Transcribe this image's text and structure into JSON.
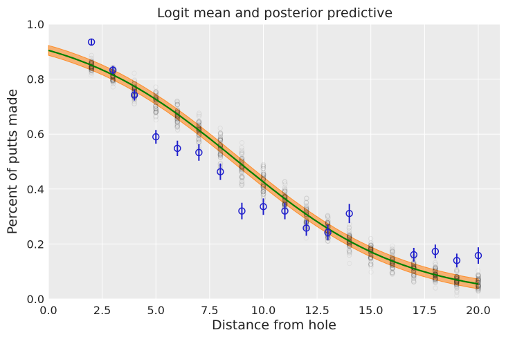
{
  "chart_data": {
    "type": "scatter",
    "title": "Logit mean and posterior predictive",
    "xlabel": "Distance from hole",
    "ylabel": "Percent of putts made",
    "xlim": [
      0,
      21
    ],
    "ylim": [
      0,
      1
    ],
    "xticks": [
      "0.0",
      "2.5",
      "5.0",
      "7.5",
      "10.0",
      "12.5",
      "15.0",
      "17.5",
      "20.0"
    ],
    "xtick_values": [
      0,
      2.5,
      5,
      7.5,
      10,
      12.5,
      15,
      17.5,
      20
    ],
    "yticks": [
      "0.0",
      "0.2",
      "0.4",
      "0.6",
      "0.8",
      "1.0"
    ],
    "ytick_values": [
      0,
      0.2,
      0.4,
      0.6,
      0.8,
      1.0
    ],
    "grid": true,
    "observed": {
      "x": [
        2,
        3,
        4,
        5,
        6,
        7,
        8,
        9,
        10,
        11,
        12,
        13,
        14,
        15,
        16,
        17,
        18,
        19,
        20
      ],
      "y": [
        0.935,
        0.833,
        0.742,
        0.59,
        0.548,
        0.533,
        0.463,
        0.32,
        0.336,
        0.32,
        0.258,
        0.242,
        0.311,
        null,
        null,
        0.161,
        0.173,
        0.14,
        0.158
      ],
      "error": [
        0.01,
        0.015,
        0.02,
        0.025,
        0.028,
        0.03,
        0.03,
        0.03,
        0.03,
        0.03,
        0.028,
        0.028,
        0.035,
        null,
        null,
        0.025,
        0.025,
        0.025,
        0.03
      ],
      "color": "#1f1fcc"
    },
    "posterior_predictive": {
      "x": [
        2,
        3,
        4,
        5,
        6,
        7,
        8,
        9,
        10,
        11,
        12,
        13,
        14,
        15,
        16,
        17,
        18,
        19,
        20
      ],
      "center": [
        0.853,
        0.812,
        0.764,
        0.714,
        0.668,
        0.609,
        0.552,
        0.489,
        0.424,
        0.365,
        0.306,
        0.252,
        0.206,
        0.168,
        0.137,
        0.111,
        0.089,
        0.071,
        0.057
      ],
      "spread": [
        0.03,
        0.035,
        0.045,
        0.05,
        0.055,
        0.06,
        0.065,
        0.065,
        0.065,
        0.06,
        0.06,
        0.055,
        0.055,
        0.05,
        0.05,
        0.045,
        0.045,
        0.04,
        0.035
      ],
      "color": "#000000"
    },
    "mean_curve": {
      "intercept": 2.25,
      "slope": -0.255,
      "color": "#008000"
    },
    "band": {
      "half_width": 0.018,
      "color": "#ff7f0e"
    },
    "colors": {
      "background": "#ebebeb",
      "grid": "#ffffff"
    }
  }
}
